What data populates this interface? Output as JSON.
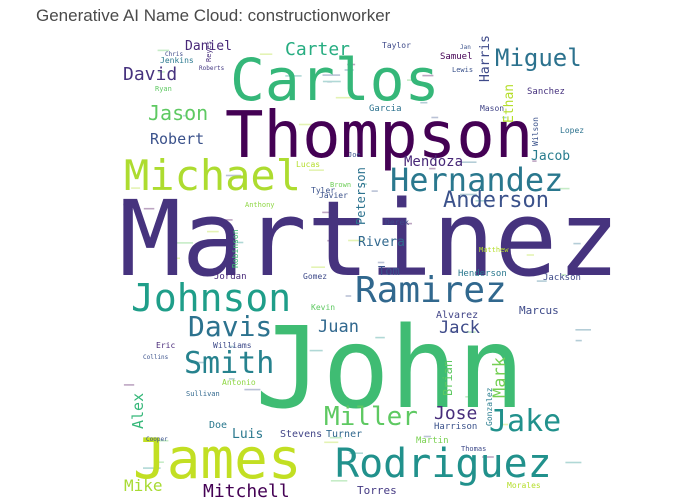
{
  "title": "Generative AI Name Cloud: constructionworker",
  "words": [
    {
      "text": "Martinez",
      "color": "#46337e"
    },
    {
      "text": "John",
      "color": "#3fbc73"
    },
    {
      "text": "Thompson",
      "color": "#440154"
    },
    {
      "text": "Carlos",
      "color": "#35b779"
    },
    {
      "text": "James",
      "color": "#c2df23"
    },
    {
      "text": "Rodriguez",
      "color": "#21918c"
    },
    {
      "text": "Michael",
      "color": "#addc30"
    },
    {
      "text": "Johnson",
      "color": "#1f9e89"
    },
    {
      "text": "Hernandez",
      "color": "#2a788e"
    },
    {
      "text": "Ramirez",
      "color": "#31688e"
    },
    {
      "text": "Anderson",
      "color": "#3b528b"
    },
    {
      "text": "Smith",
      "color": "#26828e"
    },
    {
      "text": "Davis",
      "color": "#2c728e"
    },
    {
      "text": "Miller",
      "color": "#5ec962"
    },
    {
      "text": "Jake",
      "color": "#21918c"
    },
    {
      "text": "Miguel",
      "color": "#2c728e"
    },
    {
      "text": "David",
      "color": "#46327e"
    },
    {
      "text": "Jason",
      "color": "#5ec962"
    },
    {
      "text": "Carter",
      "color": "#27ad81"
    },
    {
      "text": "Mitchell",
      "color": "#440154"
    },
    {
      "text": "Mike",
      "color": "#a8db34"
    },
    {
      "text": "Jose",
      "color": "#472d7b"
    },
    {
      "text": "Juan",
      "color": "#31688e"
    },
    {
      "text": "Jack",
      "color": "#3e4a89"
    },
    {
      "text": "Mark",
      "color": "#75d054"
    },
    {
      "text": "Robert",
      "color": "#3b528b"
    },
    {
      "text": "Daniel",
      "color": "#482878"
    },
    {
      "text": "Mendoza",
      "color": "#482878"
    },
    {
      "text": "Jacob",
      "color": "#287c8e"
    },
    {
      "text": "Harris",
      "color": "#3e4a89"
    },
    {
      "text": "Ethan",
      "color": "#b5de2b"
    },
    {
      "text": "Alex",
      "color": "#35b779"
    },
    {
      "text": "Luis",
      "color": "#2a788e"
    },
    {
      "text": "Torres",
      "color": "#443983"
    },
    {
      "text": "Rivera",
      "color": "#31688e"
    },
    {
      "text": "Marcus",
      "color": "#3e4a89"
    },
    {
      "text": "Peterson",
      "color": "#2c728e"
    },
    {
      "text": "Brian",
      "color": "#5ec962"
    },
    {
      "text": "Tom",
      "color": "#3b528b"
    },
    {
      "text": "Sanchez",
      "color": "#46327e"
    },
    {
      "text": "Garcia",
      "color": "#2c728e"
    },
    {
      "text": "Samuel",
      "color": "#440154"
    },
    {
      "text": "Jordan",
      "color": "#482878"
    },
    {
      "text": "Gomez",
      "color": "#3e4a89"
    },
    {
      "text": "Alvarez",
      "color": "#414487"
    },
    {
      "text": "Stevens",
      "color": "#414487"
    },
    {
      "text": "Turner",
      "color": "#31688e"
    },
    {
      "text": "Martin",
      "color": "#7ad151"
    },
    {
      "text": "Doe",
      "color": "#2a788e"
    },
    {
      "text": "Lopez",
      "color": "#2c728e"
    },
    {
      "text": "Wilson",
      "color": "#3b528b"
    },
    {
      "text": "Mason",
      "color": "#414487"
    },
    {
      "text": "Henderson",
      "color": "#2a788e"
    },
    {
      "text": "Jackson",
      "color": "#3e4a89"
    },
    {
      "text": "Jenkins",
      "color": "#2a788e"
    },
    {
      "text": "Gonzalez",
      "color": "#287c8e"
    },
    {
      "text": "Harrison",
      "color": "#3b528b"
    },
    {
      "text": "Williams",
      "color": "#3e4a89"
    },
    {
      "text": "Sullivan",
      "color": "#31688e"
    },
    {
      "text": "Antonio",
      "color": "#8fd744"
    },
    {
      "text": "Eric",
      "color": "#482878"
    },
    {
      "text": "Kevin",
      "color": "#5ec962"
    },
    {
      "text": "Robinson",
      "color": "#3fbc73"
    },
    {
      "text": "Thomas",
      "color": "#3e4a89"
    },
    {
      "text": "Morales",
      "color": "#b5de2b"
    },
    {
      "text": "Brown",
      "color": "#6ece58"
    },
    {
      "text": "Lucas",
      "color": "#b5de2b"
    },
    {
      "text": "Taylor",
      "color": "#3e4a89"
    },
    {
      "text": "Lewis",
      "color": "#3b528b"
    },
    {
      "text": "Ryan",
      "color": "#5ec962"
    },
    {
      "text": "Reyes",
      "color": "#472d7b"
    },
    {
      "text": "Roberts",
      "color": "#443983"
    },
    {
      "text": "Tyler",
      "color": "#3b528b"
    },
    {
      "text": "Javier",
      "color": "#3b528b"
    },
    {
      "text": "Derek",
      "color": "#3e4a89"
    },
    {
      "text": "Anthony",
      "color": "#8fd744"
    },
    {
      "text": "Matthew",
      "color": "#b5de2b"
    },
    {
      "text": "Joe",
      "color": "#3b528b"
    },
    {
      "text": "Chris",
      "color": "#3e4a89"
    },
    {
      "text": "Cooper",
      "color": "#3b528b"
    },
    {
      "text": "Collins",
      "color": "#3b528b"
    },
    {
      "text": "Jan",
      "color": "#3b528b"
    }
  ]
}
